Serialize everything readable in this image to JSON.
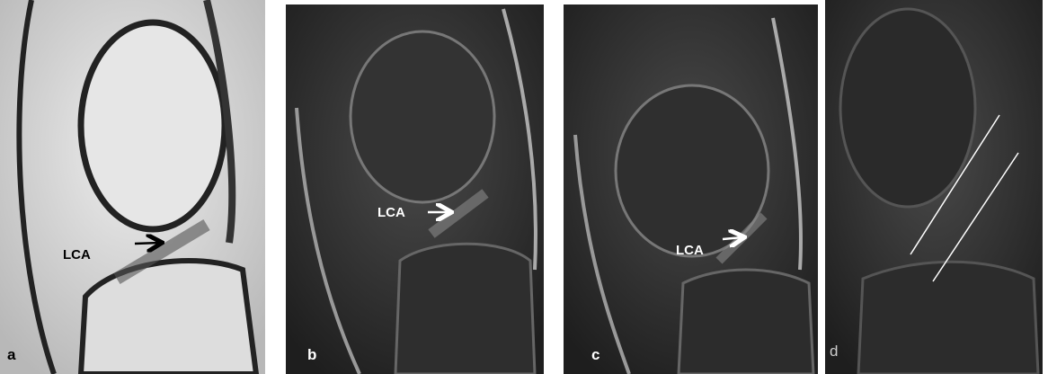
{
  "panels": [
    {
      "label": "a",
      "annotation": "LCA"
    },
    {
      "label": "b",
      "annotation": "LCA"
    },
    {
      "label": "c",
      "annotation": "LCA"
    },
    {
      "label": "d"
    }
  ]
}
